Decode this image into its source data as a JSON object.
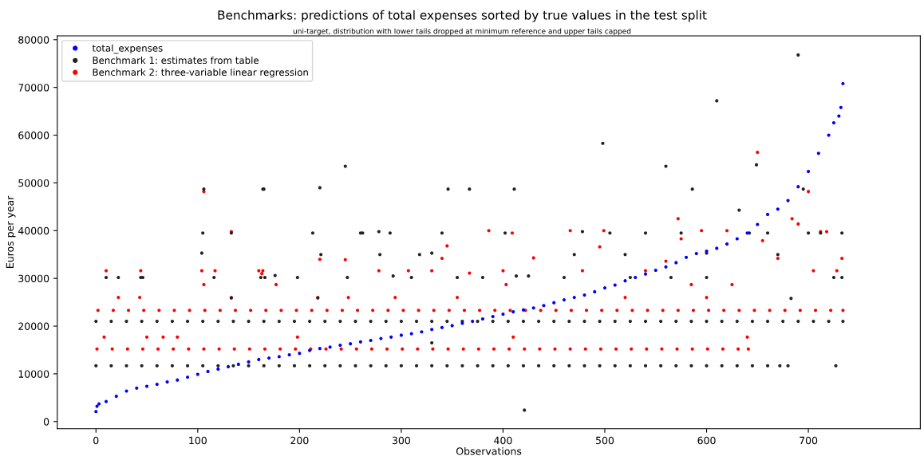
{
  "chart_data": {
    "type": "scatter",
    "title": "Benchmarks: predictions of total expenses sorted by true values in the test split",
    "subtitle": "uni-target, distribution with lower tails dropped at minimum reference and upper tails capped",
    "xlabel": "Observations",
    "ylabel": "Euros per year",
    "xlim": [
      -38,
      810
    ],
    "xticks": [
      0,
      100,
      200,
      300,
      400,
      500,
      600,
      700
    ],
    "ylim": [
      -1500,
      80800
    ],
    "yticks": [
      0,
      10000,
      20000,
      30000,
      40000,
      50000,
      60000,
      70000,
      80000
    ],
    "grid": false,
    "legend": "top left",
    "marker": "circle",
    "series": [
      {
        "name": "total_expenses",
        "color": "#0000ff",
        "x": [
          0,
          1,
          3,
          10,
          20,
          30,
          40,
          50,
          60,
          70,
          80,
          90,
          100,
          110,
          120,
          130,
          140,
          150,
          160,
          170,
          180,
          190,
          200,
          210,
          220,
          230,
          240,
          250,
          260,
          270,
          280,
          290,
          300,
          310,
          320,
          330,
          340,
          350,
          360,
          370,
          380,
          390,
          400,
          410,
          420,
          430,
          440,
          450,
          460,
          470,
          480,
          490,
          500,
          510,
          520,
          530,
          540,
          550,
          560,
          570,
          580,
          590,
          600,
          610,
          620,
          630,
          640,
          650,
          660,
          670,
          680,
          690,
          700,
          710,
          720,
          725,
          730,
          732,
          734
        ],
        "values": [
          2100,
          3200,
          3700,
          4200,
          5300,
          6400,
          7000,
          7400,
          7800,
          8300,
          8700,
          9300,
          9900,
          10500,
          11000,
          11500,
          12000,
          12500,
          13000,
          13300,
          13600,
          14000,
          14300,
          14900,
          15300,
          15600,
          16000,
          16300,
          16700,
          17000,
          17400,
          17700,
          18100,
          18400,
          18800,
          19300,
          19700,
          20100,
          20600,
          21000,
          21500,
          22000,
          22500,
          23000,
          23400,
          23800,
          24300,
          24900,
          25500,
          26000,
          26500,
          27200,
          28000,
          28600,
          29500,
          30200,
          30900,
          31700,
          32400,
          33300,
          34400,
          35200,
          35700,
          36300,
          37200,
          38300,
          39500,
          41300,
          43400,
          44500,
          46300,
          49200,
          52400,
          56200,
          60000,
          62600,
          64000,
          65800,
          70800
        ]
      },
      {
        "name": "Benchmark 1: estimates from table",
        "color": "#222222",
        "x": [
          0,
          15,
          30,
          45,
          60,
          75,
          90,
          105,
          120,
          135,
          150,
          165,
          180,
          195,
          210,
          225,
          240,
          255,
          270,
          285,
          300,
          315,
          330,
          345,
          360,
          375,
          390,
          405,
          420,
          435,
          450,
          465,
          480,
          495,
          510,
          525,
          540,
          555,
          570,
          585,
          600,
          615,
          630,
          645,
          660,
          675,
          690,
          705,
          720,
          734,
          0,
          15,
          30,
          45,
          60,
          75,
          90,
          105,
          120,
          135,
          150,
          165,
          180,
          195,
          210,
          225,
          240,
          255,
          270,
          285,
          300,
          315,
          330,
          345,
          360,
          375,
          390,
          405,
          420,
          435,
          450,
          465,
          480,
          495,
          510,
          525,
          540,
          555,
          570,
          585,
          600,
          615,
          630,
          645,
          660,
          672,
          680,
          727,
          10,
          22,
          44,
          46,
          106,
          105,
          104,
          116,
          133,
          133,
          162,
          164,
          165,
          166,
          176,
          198,
          213,
          218,
          220,
          221,
          245,
          247,
          260,
          262,
          278,
          279,
          289,
          292,
          318,
          330,
          330,
          340,
          346,
          355,
          367,
          402,
          411,
          413,
          421,
          425,
          470,
          478,
          498,
          505,
          520,
          540,
          560,
          575,
          586,
          600,
          610,
          632,
          642,
          649,
          660,
          670,
          690,
          695,
          700,
          712,
          725,
          733,
          733,
          683,
          600,
          565,
          525,
          460,
          380,
          310
        ],
        "values": [
          21000,
          21000,
          21000,
          21000,
          21000,
          21000,
          21000,
          21000,
          21000,
          21000,
          21000,
          21000,
          21000,
          21000,
          21000,
          21000,
          21000,
          21000,
          21000,
          21000,
          21000,
          21000,
          21000,
          21000,
          21000,
          21000,
          21000,
          21000,
          21000,
          21000,
          21000,
          21000,
          21000,
          21000,
          21000,
          21000,
          21000,
          21000,
          21000,
          21000,
          21000,
          21000,
          21000,
          21000,
          21000,
          21000,
          21000,
          21000,
          21000,
          21000,
          11700,
          11700,
          11700,
          11700,
          11700,
          11700,
          11700,
          11700,
          11700,
          11700,
          11700,
          11700,
          11700,
          11700,
          11700,
          11700,
          11700,
          11700,
          11700,
          11700,
          11700,
          11700,
          11700,
          11700,
          11700,
          11700,
          11700,
          11700,
          11700,
          11700,
          11700,
          11700,
          11700,
          11700,
          11700,
          11700,
          11700,
          11700,
          11700,
          11700,
          11700,
          11700,
          11700,
          11700,
          11700,
          11700,
          11700,
          11700,
          30200,
          30200,
          30200,
          30200,
          48700,
          39500,
          35300,
          30200,
          39500,
          25900,
          30200,
          48700,
          48700,
          30200,
          30600,
          30200,
          39500,
          25900,
          49000,
          35000,
          53500,
          30200,
          39500,
          39500,
          39800,
          35000,
          39500,
          30500,
          35000,
          35300,
          16500,
          39500,
          48700,
          30200,
          48700,
          39500,
          48700,
          30500,
          2400,
          30500,
          35000,
          39800,
          58300,
          39500,
          35000,
          39500,
          53500,
          39500,
          48700,
          30200,
          67200,
          44300,
          39500,
          53800,
          39500,
          35000,
          76800,
          48700,
          39500,
          39500,
          30200,
          39500,
          30200,
          25800,
          35300,
          30200,
          30200,
          30200,
          30200,
          30200
        ]
      },
      {
        "name": "Benchmark 2: three-variable linear regression",
        "color": "#ff0000",
        "x": [
          2,
          17,
          32,
          47,
          62,
          77,
          92,
          107,
          122,
          137,
          152,
          167,
          182,
          197,
          212,
          227,
          242,
          257,
          272,
          287,
          302,
          317,
          332,
          347,
          362,
          377,
          392,
          407,
          422,
          437,
          452,
          467,
          482,
          497,
          512,
          527,
          542,
          557,
          572,
          587,
          602,
          617,
          632,
          647,
          662,
          677,
          692,
          707,
          722,
          734,
          1,
          16,
          31,
          46,
          61,
          76,
          91,
          106,
          121,
          136,
          151,
          166,
          181,
          196,
          211,
          226,
          241,
          256,
          271,
          286,
          301,
          316,
          331,
          346,
          361,
          376,
          391,
          406,
          421,
          436,
          451,
          466,
          481,
          496,
          511,
          526,
          541,
          556,
          571,
          586,
          601,
          616,
          631,
          641,
          10,
          22,
          8,
          44,
          43,
          50,
          66,
          80,
          104,
          106,
          106,
          117,
          133,
          133,
          160,
          163,
          164,
          177,
          198,
          218,
          220,
          245,
          248,
          278,
          294,
          307,
          330,
          340,
          345,
          355,
          367,
          386,
          400,
          403,
          409,
          410,
          430,
          466,
          478,
          495,
          499,
          520,
          540,
          560,
          572,
          575,
          595,
          620,
          640,
          650,
          655,
          670,
          684,
          690,
          700,
          705,
          712,
          718,
          733,
          728,
          600,
          585,
          625
        ],
        "values": [
          23300,
          23300,
          23300,
          23300,
          23300,
          23300,
          23300,
          23300,
          23300,
          23300,
          23300,
          23300,
          23300,
          23300,
          23300,
          23300,
          23300,
          23300,
          23300,
          23300,
          23300,
          23300,
          23300,
          23300,
          23300,
          23300,
          23300,
          23300,
          23300,
          23300,
          23300,
          23300,
          23300,
          23300,
          23300,
          23300,
          23300,
          23300,
          23300,
          23300,
          23300,
          23300,
          23300,
          23300,
          23300,
          23300,
          23300,
          23300,
          23300,
          23300,
          15200,
          15200,
          15200,
          15200,
          15200,
          15200,
          15200,
          15200,
          15200,
          15200,
          15200,
          15200,
          15200,
          15200,
          15200,
          15200,
          15200,
          15200,
          15200,
          15200,
          15200,
          15200,
          15200,
          15200,
          15200,
          15200,
          15200,
          15200,
          15200,
          15200,
          15200,
          15200,
          15200,
          15200,
          15200,
          15200,
          15200,
          15200,
          15200,
          15200,
          15200,
          15200,
          15200,
          15200,
          31600,
          26000,
          17700,
          31600,
          26000,
          17700,
          17700,
          17700,
          31600,
          48200,
          28700,
          31600,
          39800,
          26000,
          31600,
          31000,
          31600,
          28700,
          17700,
          26000,
          34000,
          33900,
          26000,
          31600,
          26000,
          31600,
          31600,
          34200,
          36800,
          26000,
          31100,
          40000,
          31600,
          28700,
          39500,
          17700,
          34300,
          40000,
          31600,
          36600,
          40000,
          26000,
          31600,
          33600,
          42500,
          38300,
          40000,
          40000,
          17700,
          56400,
          37900,
          34200,
          42500,
          41400,
          48200,
          31600,
          39800,
          39800,
          34200,
          31600,
          26000,
          28700,
          28700
        ]
      }
    ]
  }
}
